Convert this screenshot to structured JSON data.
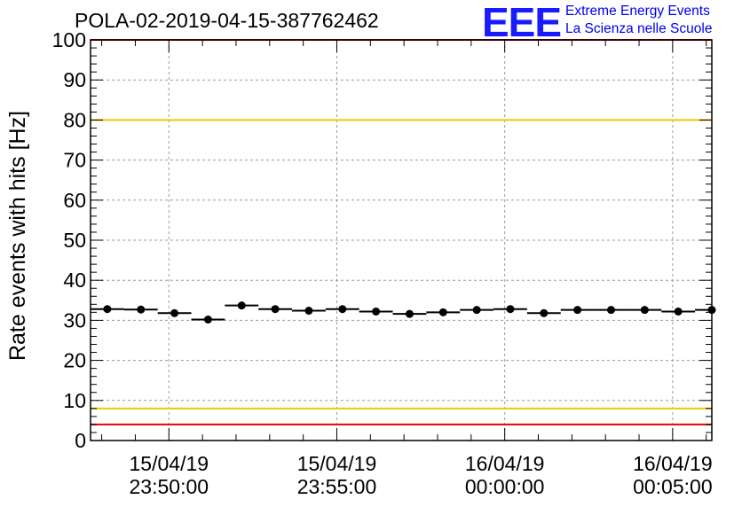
{
  "title": "POLA-02-2019-04-15-387762462",
  "logo": {
    "mark": "EEE",
    "line1": "Extreme Energy Events",
    "line2": "La Scienza nelle Scuole"
  },
  "colors": {
    "upper_threshold": "#f0c800",
    "lower_threshold": "#ee0000",
    "marker": "#000000",
    "grid": "#9a9a9a",
    "logo": "#0000ee"
  },
  "chart_data": {
    "type": "scatter",
    "title": "POLA-02-2019-04-15-387762462",
    "ylabel": "Rate events with hits [Hz]",
    "xlabel": "",
    "ylim": [
      0,
      100
    ],
    "yticks": [
      "0",
      "10",
      "20",
      "30",
      "40",
      "50",
      "60",
      "70",
      "80",
      "90",
      "100"
    ],
    "xlim": [
      "2019-04-15 23:47:40",
      "2019-04-16 00:06:10"
    ],
    "xticks": [
      {
        "date": "15/04/19",
        "time": "23:50:00",
        "at": "2019-04-15 23:50:00"
      },
      {
        "date": "15/04/19",
        "time": "23:55:00",
        "at": "2019-04-15 23:55:00"
      },
      {
        "date": "16/04/19",
        "time": "00:00:00",
        "at": "2019-04-16 00:00:00"
      },
      {
        "date": "16/04/19",
        "time": "00:05:00",
        "at": "2019-04-16 00:05:00"
      }
    ],
    "bin_width_seconds": 60,
    "grid": true,
    "reference_lines": [
      {
        "y": 80,
        "color": "#f0c800"
      },
      {
        "y": 100,
        "color": "#ee0000"
      },
      {
        "y": 8,
        "color": "#f0c800"
      },
      {
        "y": 4,
        "color": "#ee0000"
      }
    ],
    "series": [
      {
        "points": [
          {
            "x": "2019-04-15 23:48:10",
            "y": 32.8
          },
          {
            "x": "2019-04-15 23:49:10",
            "y": 32.7
          },
          {
            "x": "2019-04-15 23:50:10",
            "y": 31.8
          },
          {
            "x": "2019-04-15 23:51:10",
            "y": 30.2
          },
          {
            "x": "2019-04-15 23:52:10",
            "y": 33.7
          },
          {
            "x": "2019-04-15 23:53:10",
            "y": 32.8
          },
          {
            "x": "2019-04-15 23:54:10",
            "y": 32.4
          },
          {
            "x": "2019-04-15 23:55:10",
            "y": 32.8
          },
          {
            "x": "2019-04-15 23:56:10",
            "y": 32.2
          },
          {
            "x": "2019-04-15 23:57:10",
            "y": 31.6
          },
          {
            "x": "2019-04-15 23:58:10",
            "y": 32.0
          },
          {
            "x": "2019-04-15 23:59:10",
            "y": 32.6
          },
          {
            "x": "2019-04-16 00:00:10",
            "y": 32.8
          },
          {
            "x": "2019-04-16 00:01:10",
            "y": 31.8
          },
          {
            "x": "2019-04-16 00:02:10",
            "y": 32.6
          },
          {
            "x": "2019-04-16 00:03:10",
            "y": 32.6
          },
          {
            "x": "2019-04-16 00:04:10",
            "y": 32.6
          },
          {
            "x": "2019-04-16 00:05:10",
            "y": 32.2
          },
          {
            "x": "2019-04-16 00:06:10",
            "y": 32.6
          }
        ]
      }
    ]
  }
}
